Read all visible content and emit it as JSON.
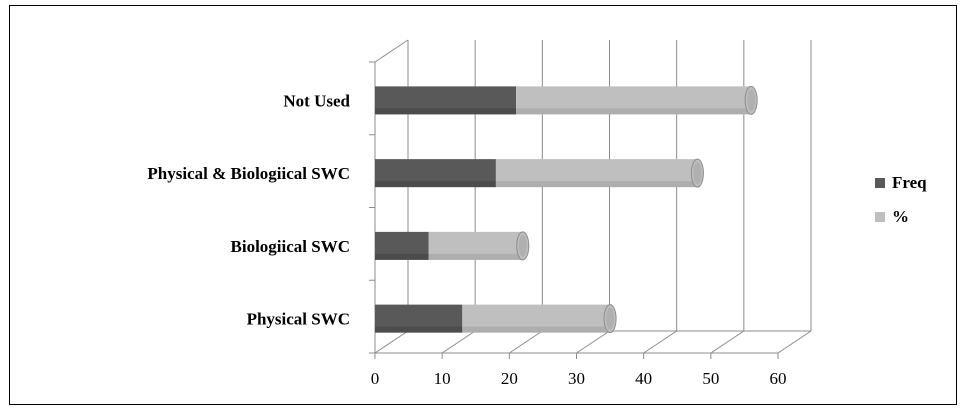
{
  "chart_data": {
    "type": "bar",
    "orientation": "horizontal",
    "stacked": true,
    "style": "3d-cylinder",
    "categories": [
      "Physical SWC",
      "Biologiical SWC",
      "Physical & Biologiical SWC",
      "Not Used"
    ],
    "series": [
      {
        "name": "Freq",
        "values": [
          13,
          8,
          18,
          21
        ],
        "color": "#595959"
      },
      {
        "name": "%",
        "values": [
          22,
          14,
          30,
          35
        ],
        "color": "#bfbfbf"
      }
    ],
    "xlim": [
      0,
      60
    ],
    "xticks": [
      "0",
      "10",
      "20",
      "30",
      "40",
      "50",
      "60"
    ],
    "legend_position": "right",
    "grid": true
  }
}
